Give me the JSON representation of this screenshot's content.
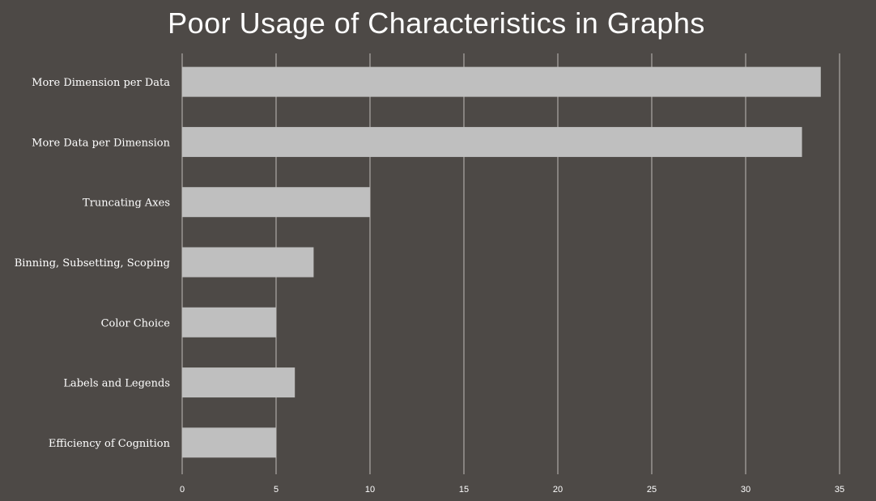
{
  "chart_data": {
    "type": "bar",
    "orientation": "horizontal",
    "title": "Poor Usage of Characteristics in Graphs",
    "categories": [
      "More Dimension per Data",
      "More Data per Dimension",
      "Truncating Axes",
      "Binning, Subsetting, Scoping",
      "Color Choice",
      "Labels and Legends",
      "Efficiency of Cognition"
    ],
    "values": [
      34,
      33,
      10,
      7,
      5,
      6,
      5
    ],
    "xlim": [
      0,
      35
    ],
    "xticks": [
      "0",
      "5",
      "10",
      "15",
      "20",
      "25",
      "30",
      "35"
    ],
    "grid": true,
    "legend": "none",
    "colors": {
      "background": "#4d4946",
      "bar": "#bfbfbf",
      "grid": "#bfbcb8",
      "text": "#ffffff"
    }
  }
}
